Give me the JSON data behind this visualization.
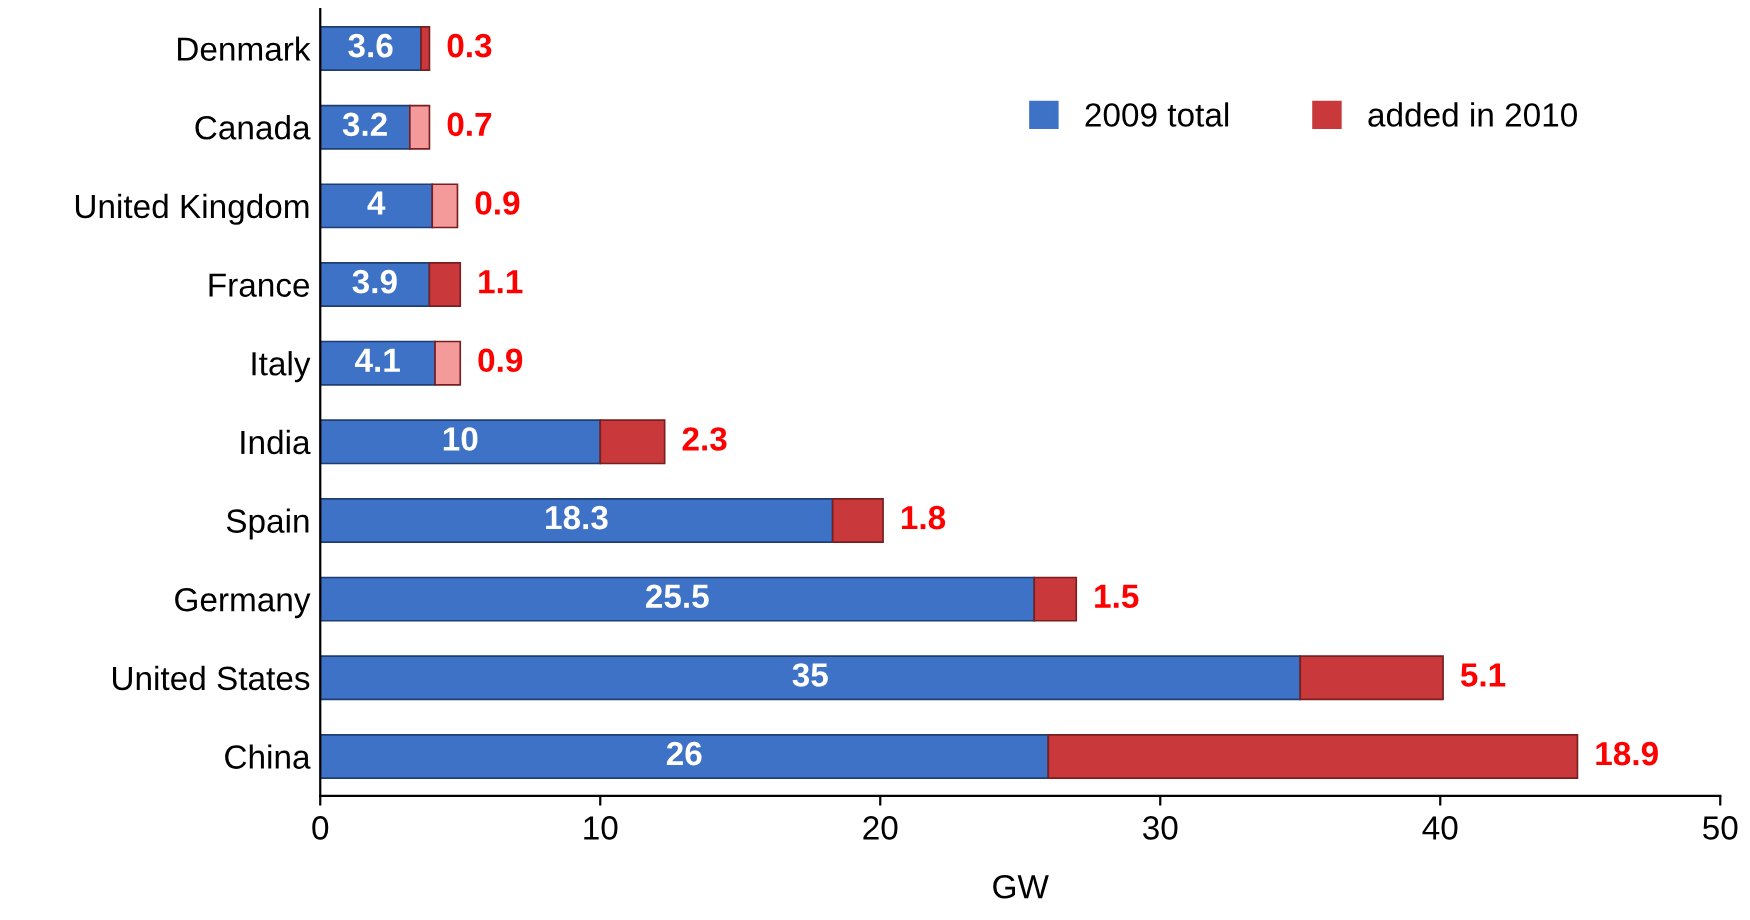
{
  "chart_data": {
    "type": "bar",
    "orientation": "horizontal",
    "stacked": true,
    "xlabel": "GW",
    "categories": [
      "Denmark",
      "Canada",
      "United Kingdom",
      "France",
      "Italy",
      "India",
      "Spain",
      "Germany",
      "United States",
      "China"
    ],
    "series": [
      {
        "name": "2009 total",
        "color": "#3d72c6",
        "values": [
          3.6,
          3.2,
          4,
          3.9,
          4.1,
          10,
          18.3,
          25.5,
          35,
          26
        ]
      },
      {
        "name": "added in 2010",
        "color": "#c9393b",
        "colors": [
          "#c9393b",
          "#f59a9a",
          "#f59a9a",
          "#c9393b",
          "#f59a9a",
          "#c9393b",
          "#c9393b",
          "#c9393b",
          "#c9393b",
          "#c9393b"
        ],
        "values": [
          0.3,
          0.7,
          0.9,
          1.1,
          0.9,
          2.3,
          1.8,
          1.5,
          5.1,
          18.9
        ]
      }
    ],
    "xlim": [
      0,
      50
    ],
    "xticks": [
      0,
      10,
      20,
      30,
      40,
      50
    ],
    "data_labels": true,
    "legend": "top right",
    "grid": false
  }
}
